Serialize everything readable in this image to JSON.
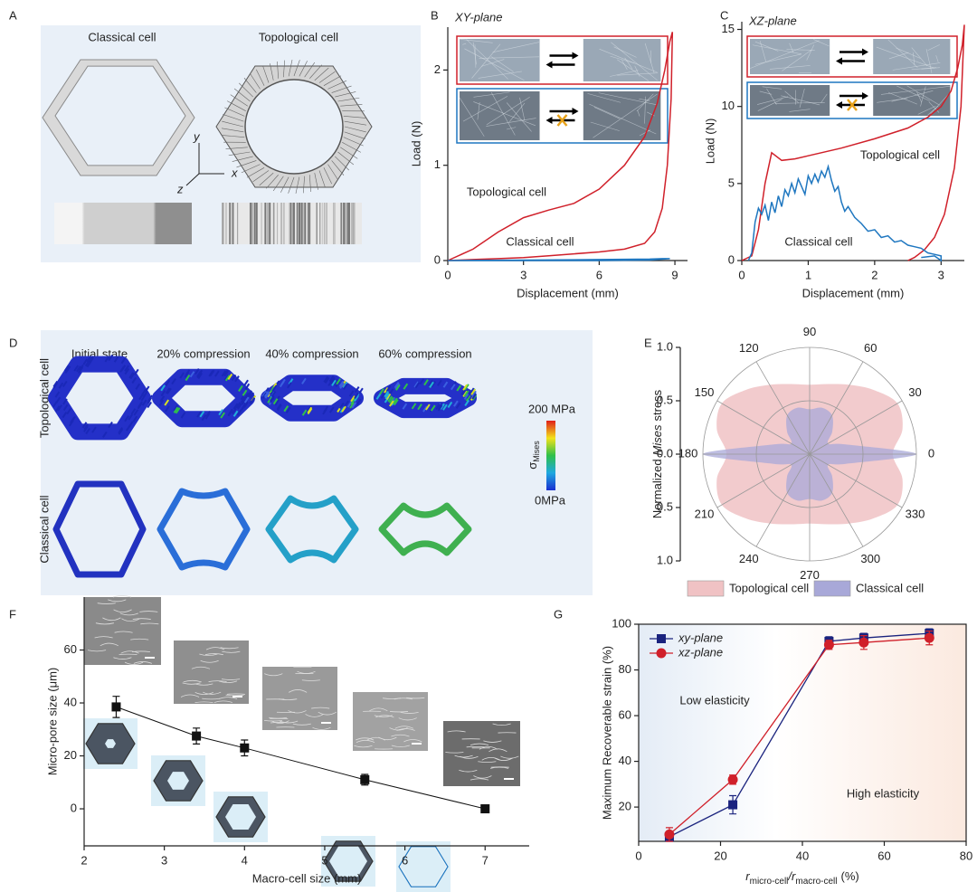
{
  "panel_labels": [
    "A",
    "B",
    "C",
    "D",
    "E",
    "F",
    "G"
  ],
  "panel_a": {
    "left_title": "Classical cell",
    "right_title": "Topological cell",
    "axes": [
      "y",
      "x",
      "z"
    ]
  },
  "panel_d": {
    "columns": [
      "Initial state",
      "20% compression",
      "40% compression",
      "60% compression"
    ],
    "rows": [
      "Topological cell",
      "Classical cell"
    ],
    "colorbar": {
      "max_label": "200 MPa",
      "symbol": "σ",
      "subscript": "Mises",
      "min_label": "0MPa"
    }
  },
  "chart_data": [
    {
      "type": "line",
      "inset_title": "XY-plane",
      "xlabel": "Displacement (mm)",
      "ylabel": "Load (N)",
      "xlim": [
        0,
        9.5
      ],
      "ylim": [
        0,
        2.45
      ],
      "xticks": [
        0,
        3,
        6,
        9
      ],
      "yticks": [
        0,
        1,
        2
      ],
      "series": [
        {
          "name": "Topological cell",
          "color": "#d0202a",
          "x": [
            0,
            1,
            2,
            3,
            4,
            5,
            6,
            7,
            7.8,
            8.3,
            8.6,
            8.8,
            8.9,
            8.85,
            8.7,
            8.5,
            8.2,
            7.8,
            7,
            6,
            5,
            4,
            3,
            2,
            1,
            0
          ],
          "values": [
            0,
            0.12,
            0.3,
            0.45,
            0.53,
            0.6,
            0.75,
            1.0,
            1.3,
            1.65,
            2.0,
            2.3,
            2.4,
            1.7,
            1.0,
            0.55,
            0.3,
            0.18,
            0.12,
            0.09,
            0.07,
            0.05,
            0.03,
            0.02,
            0.01,
            0
          ]
        },
        {
          "name": "Classical cell",
          "color": "#1f77c0",
          "x": [
            0,
            3,
            6,
            8,
            8.5,
            8.8,
            8,
            6,
            3,
            0
          ],
          "values": [
            0,
            0.005,
            0.01,
            0.015,
            0.02,
            0.02,
            0.005,
            0,
            0,
            0
          ]
        }
      ]
    },
    {
      "type": "line",
      "inset_title": "XZ-plane",
      "xlabel": "Displacement (mm)",
      "ylabel": "Load (N)",
      "xlim": [
        0,
        3.35
      ],
      "ylim": [
        0,
        15.5
      ],
      "xticks": [
        0,
        1,
        2,
        3
      ],
      "yticks": [
        0,
        5,
        10,
        15
      ],
      "series": [
        {
          "name": "Topological cell",
          "color": "#d0202a",
          "x": [
            0,
            0.15,
            0.25,
            0.35,
            0.45,
            0.6,
            0.8,
            1,
            1.5,
            2,
            2.5,
            2.8,
            3,
            3.15,
            3.25,
            3.32,
            3.35,
            3.3,
            3.2,
            3.05,
            2.9,
            2.75,
            2.6,
            2.5
          ],
          "values": [
            0,
            0.3,
            2,
            5,
            7,
            6.5,
            6.6,
            6.8,
            7.3,
            7.9,
            8.6,
            9.3,
            10,
            11,
            12.5,
            14,
            15.3,
            10,
            6,
            3,
            1.5,
            0.7,
            0.2,
            0
          ]
        },
        {
          "name": "Classical cell",
          "color": "#1f77c0",
          "x": [
            0.1,
            0.15,
            0.2,
            0.25,
            0.3,
            0.35,
            0.4,
            0.45,
            0.5,
            0.55,
            0.6,
            0.65,
            0.7,
            0.75,
            0.8,
            0.85,
            0.9,
            0.95,
            1,
            1.05,
            1.1,
            1.15,
            1.2,
            1.25,
            1.3,
            1.35,
            1.4,
            1.45,
            1.5,
            1.55,
            1.6,
            1.7,
            1.8,
            1.9,
            2,
            2.1,
            2.2,
            2.3,
            2.4,
            2.5,
            2.6,
            2.7,
            2.8,
            2.9,
            3,
            3,
            2.9,
            2.7
          ],
          "values": [
            0,
            0.5,
            2.5,
            3.4,
            3,
            3.6,
            2.6,
            3.8,
            3.1,
            4.2,
            3.5,
            4.6,
            4.2,
            5,
            4.4,
            5.3,
            4.8,
            4.3,
            5.5,
            5,
            5.6,
            5.1,
            5.8,
            5.4,
            6.1,
            5.2,
            4.5,
            4.8,
            3.8,
            3.2,
            3.5,
            2.8,
            2.4,
            1.9,
            2,
            1.5,
            1.6,
            1.2,
            1.3,
            1,
            0.9,
            0.8,
            0.5,
            0.4,
            0.3,
            0,
            0.3,
            0.2
          ]
        }
      ]
    },
    {
      "type": "polar-area",
      "ylabel_parts": [
        "Normalized",
        "Mises",
        "stress"
      ],
      "theta": [
        0,
        15,
        30,
        45,
        60,
        75,
        90,
        105,
        120,
        135,
        150,
        165,
        180,
        195,
        210,
        225,
        240,
        255,
        270,
        285,
        300,
        315,
        330,
        345
      ],
      "thetaticks": [
        0,
        30,
        60,
        90,
        120,
        150,
        180,
        210,
        240,
        270,
        300,
        330
      ],
      "rlim": [
        0,
        1
      ],
      "rticks": [
        {
          "value": 0,
          "label": "0.0"
        },
        {
          "value": 0.5,
          "label": "0.5"
        },
        {
          "value": 1,
          "label": "1.0"
        }
      ],
      "legend": "bottom",
      "series": [
        {
          "name": "Topological cell",
          "color": "#f0c2c4",
          "values": [
            0.78,
            0.9,
            0.95,
            0.85,
            0.75,
            0.68,
            0.65,
            0.68,
            0.75,
            0.85,
            0.95,
            0.9,
            0.78,
            0.9,
            0.95,
            0.85,
            0.75,
            0.68,
            0.65,
            0.68,
            0.75,
            0.85,
            0.95,
            0.9
          ]
        },
        {
          "name": "Classical cell",
          "color": "#a8a8d8",
          "values": [
            1.0,
            0.35,
            0.2,
            0.3,
            0.42,
            0.45,
            0.42,
            0.45,
            0.42,
            0.3,
            0.2,
            0.35,
            1.0,
            0.35,
            0.2,
            0.3,
            0.42,
            0.45,
            0.42,
            0.45,
            0.42,
            0.3,
            0.2,
            0.35
          ]
        }
      ]
    },
    {
      "type": "scatter",
      "xlabel": "Macro-cell size (mm)",
      "ylabel": "Micro-pore size (μm)",
      "x": [
        2.4,
        3.4,
        4,
        5.5,
        7
      ],
      "values": [
        38.5,
        27.5,
        23,
        11,
        0
      ],
      "errors": [
        4,
        3,
        3,
        2,
        1
      ],
      "xlim": [
        2,
        7.55
      ],
      "ylim": [
        -14,
        80
      ],
      "xticks": [
        2,
        3,
        4,
        5,
        6,
        7
      ],
      "yticks": [
        0,
        20,
        40,
        60
      ],
      "color": "#111111"
    },
    {
      "type": "line",
      "xlabel_parts": [
        "r",
        "micro-cell",
        "/r",
        "macro-cell",
        "(%)"
      ],
      "ylabel": "Maximum Recoverable strain (%)",
      "x": [
        7.5,
        23,
        46.5,
        55,
        71
      ],
      "series": [
        {
          "name": "xy-plane",
          "color": "#1a237e",
          "marker": "square",
          "values": [
            7,
            21,
            92.5,
            94,
            96
          ],
          "errors": [
            2,
            4,
            2,
            2,
            2
          ]
        },
        {
          "name": "xz-plane",
          "color": "#d0202a",
          "marker": "circle",
          "values": [
            8,
            32,
            91,
            92,
            94
          ],
          "errors": [
            3,
            2,
            2,
            3,
            3
          ]
        }
      ],
      "xlim": [
        0,
        80
      ],
      "ylim": [
        5,
        100
      ],
      "xticks": [
        0,
        20,
        40,
        60,
        80
      ],
      "yticks": [
        20,
        40,
        60,
        80,
        100
      ],
      "legend": "upper left",
      "annotations": [
        "Low elasticity",
        "High elasticity"
      ]
    }
  ]
}
